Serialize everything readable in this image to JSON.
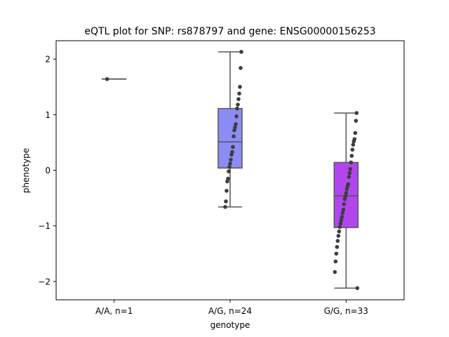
{
  "chart_data": {
    "type": "box",
    "title": "eQTL plot for SNP: rs878797 and gene: ENSG00000156253",
    "xlabel": "genotype",
    "ylabel": "phenotype",
    "ylim": [
      -2.33,
      2.33
    ],
    "yticks": [
      -2,
      -1,
      0,
      1,
      2
    ],
    "ytick_labels": [
      "−2",
      "−1",
      "0",
      "1",
      "2"
    ],
    "grid": false,
    "legend": "none",
    "categories": [
      "A/A, n=1",
      "A/G, n=24",
      "G/G, n=33"
    ],
    "boxes": [
      {
        "category": "A/A, n=1",
        "color": "#9393f2",
        "whisker_low": 1.64,
        "q1": 1.64,
        "median": 1.64,
        "q3": 1.64,
        "whisker_high": 1.64
      },
      {
        "category": "A/G, n=24",
        "color": "#8c8cf5",
        "whisker_low": -0.66,
        "q1": 0.04,
        "median": 0.51,
        "q3": 1.11,
        "whisker_high": 2.13
      },
      {
        "category": "G/G, n=33",
        "color": "#b146ef",
        "whisker_low": -2.12,
        "q1": -1.03,
        "median": -0.46,
        "q3": 0.14,
        "whisker_high": 1.03
      }
    ],
    "points": [
      {
        "category": "A/A, n=1",
        "values": [
          1.64
        ]
      },
      {
        "category": "A/G, n=24",
        "values": [
          2.13,
          1.84,
          1.5,
          1.38,
          1.28,
          1.18,
          1.11,
          0.97,
          0.83,
          0.77,
          0.72,
          0.61,
          0.42,
          0.33,
          0.28,
          0.19,
          0.12,
          0.06,
          -0.02,
          -0.15,
          -0.2,
          -0.37,
          -0.56,
          -0.66
        ]
      },
      {
        "category": "G/G, n=33",
        "values": [
          1.03,
          0.89,
          0.67,
          0.56,
          0.52,
          0.46,
          0.37,
          0.26,
          0.14,
          0.02,
          -0.05,
          -0.12,
          -0.25,
          -0.29,
          -0.34,
          -0.41,
          -0.47,
          -0.52,
          -0.61,
          -0.71,
          -0.77,
          -0.84,
          -0.9,
          -0.96,
          -1.02,
          -1.1,
          -1.18,
          -1.27,
          -1.38,
          -1.5,
          -1.64,
          -1.83,
          -2.12
        ]
      }
    ],
    "point_color": "#3d3d3d",
    "line_color": "#555555"
  }
}
